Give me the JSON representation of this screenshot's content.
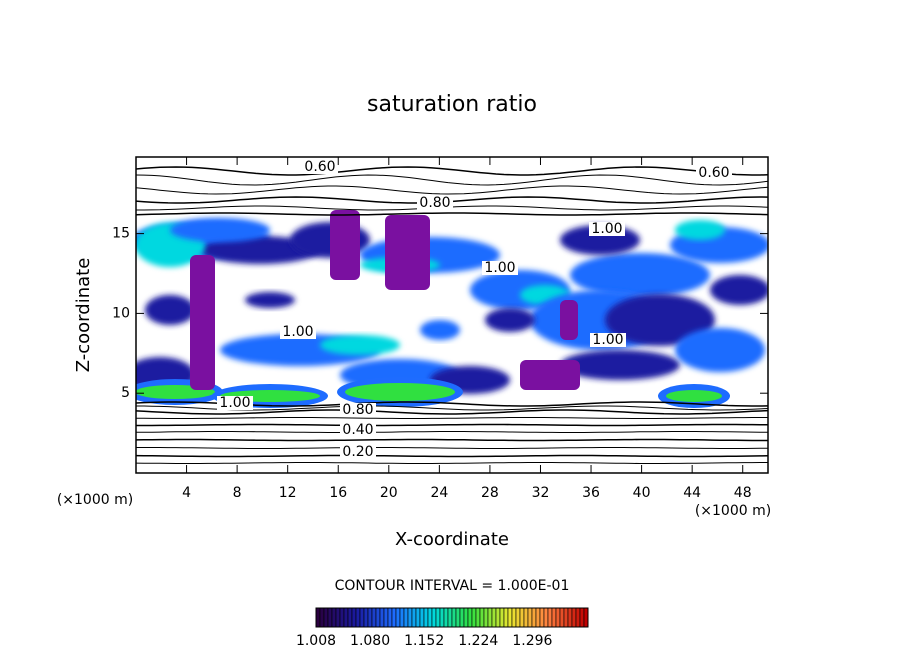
{
  "chart_data": {
    "type": "contour",
    "title": "saturation ratio",
    "x_label": "X-coordinate",
    "y_label": "Z-coordinate",
    "x_unit": "(×1000 m)",
    "y_unit": "(×1000 m)",
    "xlim": [
      0,
      50
    ],
    "ylim": [
      0,
      19.8
    ],
    "xticks": [
      4,
      8,
      12,
      16,
      20,
      24,
      28,
      32,
      36,
      40,
      44,
      48
    ],
    "yticks": [
      5,
      10,
      15
    ],
    "contour_interval_text": "CONTOUR INTERVAL = 1.000E-01",
    "contour_labels": [
      {
        "value": 0.6,
        "label": "0.60"
      },
      {
        "value": 0.6,
        "label": "0.60"
      },
      {
        "value": 0.8,
        "label": "0.80"
      },
      {
        "value": 1.0,
        "label": "1.00"
      },
      {
        "value": 1.0,
        "label": "1.00"
      },
      {
        "value": 1.0,
        "label": "1.00"
      },
      {
        "value": 1.0,
        "label": "1.00"
      },
      {
        "value": 1.0,
        "label": "1.00"
      },
      {
        "value": 0.8,
        "label": "0.80"
      },
      {
        "value": 0.4,
        "label": "0.40"
      },
      {
        "value": 0.2,
        "label": "0.20"
      }
    ],
    "clim": [
      1.008,
      1.37
    ],
    "colorbar_ticks": [
      {
        "value": 1.008,
        "label": "1.008"
      },
      {
        "value": 1.08,
        "label": "1.080"
      },
      {
        "value": 1.152,
        "label": "1.152"
      },
      {
        "value": 1.224,
        "label": "1.224"
      },
      {
        "value": 1.296,
        "label": "1.296"
      }
    ],
    "colormap": [
      "#2a0040",
      "#1a1aa0",
      "#1e6cff",
      "#00d8e0",
      "#30e040",
      "#e8e830",
      "#ff8040",
      "#c00000"
    ]
  }
}
